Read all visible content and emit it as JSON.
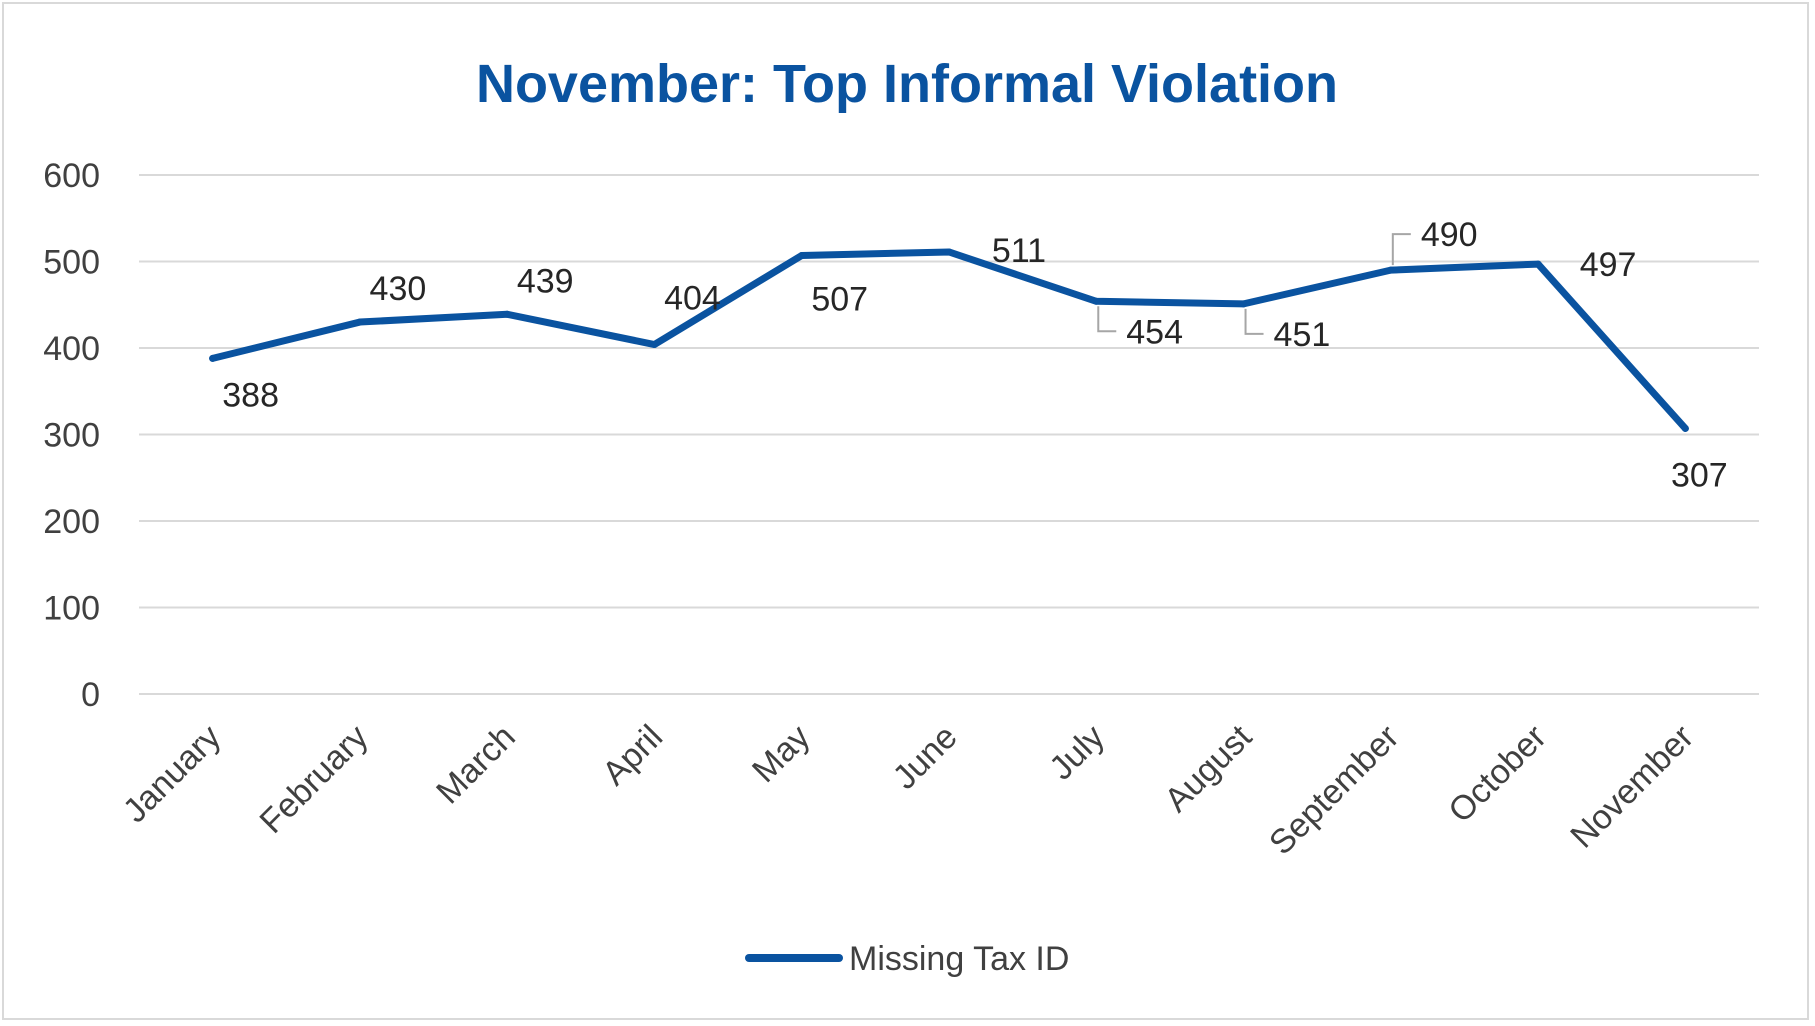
{
  "chart_data": {
    "type": "line",
    "title": "November: Top Informal Violation",
    "categories": [
      "January",
      "February",
      "March",
      "April",
      "May",
      "June",
      "July",
      "August",
      "September",
      "October",
      "November"
    ],
    "series": [
      {
        "name": "Missing Tax ID",
        "values": [
          388,
          430,
          439,
          404,
          507,
          511,
          454,
          451,
          490,
          497,
          307
        ],
        "color": "#0a53a0"
      }
    ],
    "ylim": [
      0,
      600
    ],
    "yticks": [
      0,
      100,
      200,
      300,
      400,
      500,
      600
    ],
    "data_labels": [
      "388",
      "430",
      "439",
      "404",
      "507",
      "511",
      "454",
      "451",
      "490",
      "497",
      "307"
    ],
    "grid": true,
    "legend": "bottom"
  }
}
